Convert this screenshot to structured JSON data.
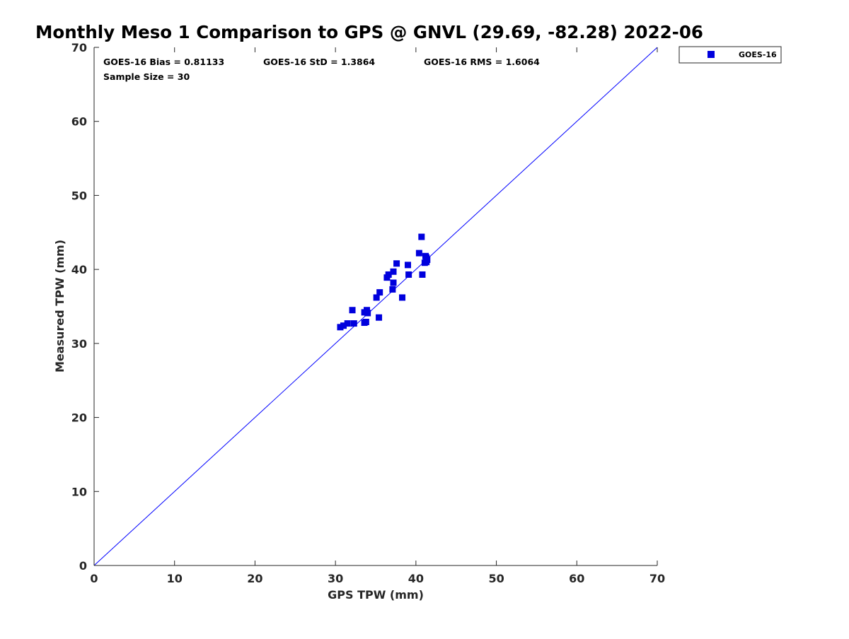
{
  "chart_data": {
    "type": "scatter",
    "title": "Monthly Meso 1 Comparison to GPS @ GNVL (29.69, -82.28) 2022-06",
    "xlabel": "GPS TPW (mm)",
    "ylabel": "Measured TPW (mm)",
    "xlim": [
      0,
      70
    ],
    "ylim": [
      0,
      70
    ],
    "x_ticks": [
      "0",
      "10",
      "20",
      "30",
      "40",
      "50",
      "60",
      "70"
    ],
    "y_ticks": [
      "0",
      "10",
      "20",
      "30",
      "40",
      "50",
      "60",
      "70"
    ],
    "grid": false,
    "legend_position": "outside-top-right",
    "reference_line": {
      "type": "one-to-one",
      "from": [
        0,
        0
      ],
      "to": [
        70,
        70
      ],
      "color": "#0000ff"
    },
    "stats": {
      "bias": "GOES-16 Bias = 0.81133",
      "std": "GOES-16 StD = 1.3864",
      "rms": "GOES-16 RMS = 1.6064",
      "sample": "Sample Size = 30"
    },
    "series": [
      {
        "name": "GOES-16",
        "color": "#0000dd",
        "marker": "square",
        "points": [
          [
            30.6,
            32.2
          ],
          [
            31.0,
            32.4
          ],
          [
            31.5,
            32.7
          ],
          [
            32.3,
            32.7
          ],
          [
            32.1,
            34.5
          ],
          [
            33.6,
            32.8
          ],
          [
            33.8,
            32.9
          ],
          [
            33.6,
            34.2
          ],
          [
            33.9,
            34.5
          ],
          [
            34.0,
            34.1
          ],
          [
            35.1,
            36.2
          ],
          [
            35.5,
            36.9
          ],
          [
            35.4,
            33.5
          ],
          [
            36.4,
            38.9
          ],
          [
            36.6,
            39.3
          ],
          [
            37.1,
            37.3
          ],
          [
            37.2,
            38.2
          ],
          [
            37.2,
            39.7
          ],
          [
            37.6,
            40.8
          ],
          [
            38.3,
            36.2
          ],
          [
            39.0,
            40.6
          ],
          [
            39.1,
            39.3
          ],
          [
            40.4,
            42.2
          ],
          [
            40.7,
            44.4
          ],
          [
            40.8,
            39.3
          ],
          [
            41.1,
            40.9
          ],
          [
            41.2,
            41.8
          ],
          [
            41.3,
            41.6
          ],
          [
            41.3,
            41.0
          ],
          [
            41.4,
            41.3
          ]
        ]
      }
    ]
  }
}
